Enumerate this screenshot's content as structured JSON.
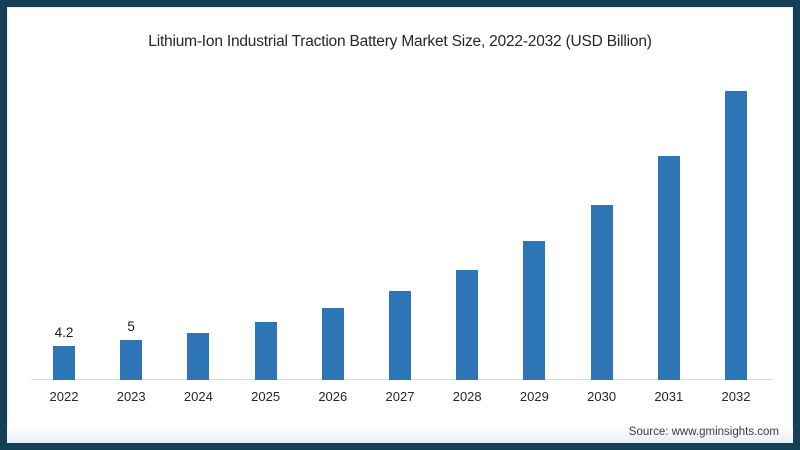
{
  "header": {
    "title": "Lithium-Ion Industrial Traction Battery Market Size, 2022-2032 (USD Billion)"
  },
  "footer": {
    "source": "Source: www.gminsights.com"
  },
  "colors": {
    "bar": "#2e75b6",
    "frame_border": "#143f54",
    "axis_line": "#d9d9d9",
    "title_text": "#262626",
    "source_text": "#3d3d3d"
  },
  "chart_data": {
    "type": "bar",
    "title": "Lithium-Ion Industrial Traction Battery Market Size, 2022-2032 (USD Billion)",
    "categories": [
      "2022",
      "2023",
      "2024",
      "2025",
      "2026",
      "2027",
      "2028",
      "2029",
      "2030",
      "2031",
      "2032"
    ],
    "values": [
      4.2,
      5,
      5.9,
      7.2,
      8.9,
      11,
      13.7,
      17.3,
      21.8,
      27.8,
      35.9
    ],
    "data_labels": {
      "2022": "4.2",
      "2023": "5"
    },
    "xlabel": "",
    "ylabel": "",
    "ylim": [
      0,
      40
    ],
    "grid": false,
    "legend": false,
    "axes_shown": "x-axis-only",
    "source": "Source: www.gminsights.com"
  }
}
